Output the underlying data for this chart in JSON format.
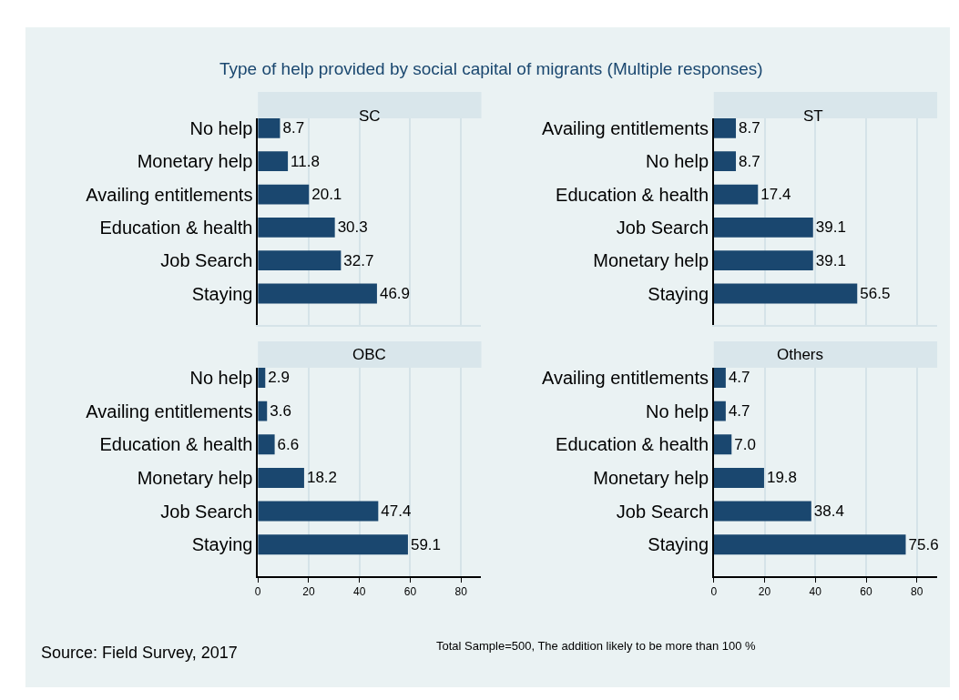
{
  "chart_data": [
    {
      "type": "bar",
      "orientation": "horizontal",
      "title": "SC",
      "annotations": [
        "Type of help provided by social capital of migrants (Multiple responses)"
      ],
      "categories": [
        "No help",
        "Monetary help",
        "Availing entitlements",
        "Education & health",
        "Job Search",
        "Staying"
      ],
      "values": [
        8.7,
        11.8,
        20.1,
        30.3,
        32.7,
        46.9
      ],
      "color": "#1a476f",
      "data_labels": true,
      "xlim": [
        0,
        88
      ],
      "xticks": [
        0,
        20,
        40,
        60,
        80
      ],
      "grid": "x",
      "tick_labels": "y"
    },
    {
      "type": "bar",
      "orientation": "horizontal",
      "title": "ST",
      "categories": [
        "Availing entitlements",
        "No help",
        "Education & health",
        "Job Search",
        "Monetary help",
        "Staying"
      ],
      "values": [
        8.7,
        8.7,
        17.4,
        39.1,
        39.1,
        56.5
      ],
      "color": "#1a476f",
      "data_labels": true,
      "xlim": [
        0,
        88
      ],
      "xticks": [
        0,
        20,
        40,
        60,
        80
      ],
      "grid": "x",
      "tick_labels": "y"
    },
    {
      "type": "bar",
      "orientation": "horizontal",
      "title": "OBC",
      "categories": [
        "No help",
        "Availing entitlements",
        "Education & health",
        "Monetary help",
        "Job Search",
        "Staying"
      ],
      "values": [
        2.9,
        3.6,
        6.6,
        18.2,
        47.4,
        59.1
      ],
      "color": "#1a476f",
      "data_labels": true,
      "xlim": [
        0,
        88
      ],
      "xticks": [
        0,
        20,
        40,
        60,
        80
      ],
      "grid": "x"
    },
    {
      "type": "bar",
      "orientation": "horizontal",
      "title": "Others",
      "annotations": [
        "Total Sample=500, The addition likely to be more than 100 %",
        "Source: Field Survey, 2017"
      ],
      "categories": [
        "Availing entitlements",
        "No help",
        "Education & health",
        "Monetary help",
        "Job Search",
        "Staying"
      ],
      "values": [
        4.7,
        4.7,
        7.0,
        19.8,
        38.4,
        75.6
      ],
      "value_labels": [
        "4.7",
        "4.7",
        "7.0",
        "19.8",
        "38.4",
        "75.6"
      ],
      "color": "#1a476f",
      "xlim": [
        0,
        88
      ],
      "xticks": [
        0,
        20,
        40,
        60,
        80
      ],
      "grid": "x"
    }
  ]
}
